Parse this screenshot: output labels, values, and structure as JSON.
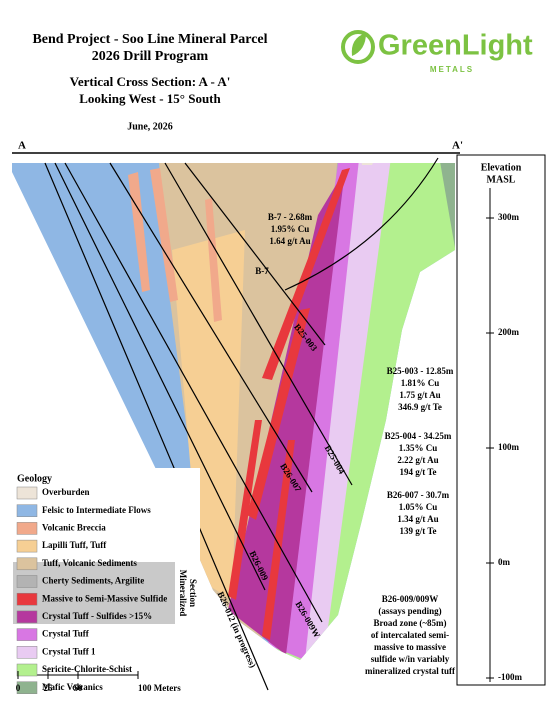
{
  "header": {
    "title_lines": [
      "Bend Project - Soo Line Mineral Parcel",
      "2026 Drill Program"
    ],
    "section_lines": [
      "Vertical Cross Section: A - A'",
      "Looking West - 15° South"
    ],
    "date": "June, 2026"
  },
  "logo": {
    "name": "GreenLight",
    "tagline": "METALS"
  },
  "section": {
    "start": "A",
    "end": "A'"
  },
  "elevation_axis": {
    "title": [
      "Elevation",
      "MASL"
    ],
    "ticks": [
      {
        "value": 300,
        "label": "300m"
      },
      {
        "value": 200,
        "label": "200m"
      },
      {
        "value": 100,
        "label": "100m"
      },
      {
        "value": 0,
        "label": "0m"
      },
      {
        "value": -100,
        "label": "-100m"
      }
    ]
  },
  "drill_holes": [
    {
      "label": "B-7"
    },
    {
      "label": "B25-003"
    },
    {
      "label": "B25-004"
    },
    {
      "label": "B26-007"
    },
    {
      "label": "B26-009"
    },
    {
      "label": "B26-009W"
    },
    {
      "label": "B26-012 (in progress)"
    }
  ],
  "intercepts": [
    {
      "lines": [
        "B-7 - 2.68m",
        "1.95% Cu",
        "1.64 g/t Au"
      ]
    },
    {
      "lines": [
        "B25-003 - 12.85m",
        "1.81% Cu",
        "1.75 g/t Au",
        "346.9 g/t Te"
      ]
    },
    {
      "lines": [
        "B25-004 - 34.25m",
        "1.35% Cu",
        "2.22 g/t Au",
        "194 g/t Te"
      ]
    },
    {
      "lines": [
        "B26-007 - 30.7m",
        "1.05% Cu",
        "1.34 g/t Au",
        "139 g/t Te"
      ]
    },
    {
      "lines": [
        "B26-009/009W",
        "(assays pending)",
        "Broad zone (~85m)",
        "of intercalated semi-",
        "massive to massive",
        "sulfide w/in variably",
        "mineralized crystal tuff"
      ]
    }
  ],
  "legend": {
    "title": "Geology",
    "group_label": [
      "Mineralized",
      "Section"
    ],
    "items": [
      {
        "label": "Overburden",
        "color": "#ede4d8"
      },
      {
        "label": "Felsic to Intermediate Flows",
        "color": "#8fb7e4"
      },
      {
        "label": "Volcanic Breccia",
        "color": "#f1a98b"
      },
      {
        "label": "Lapilli Tuff, Tuff",
        "color": "#f6cf94"
      },
      {
        "label": "Tuff, Volcanic Sediments",
        "color": "#dbc39e"
      },
      {
        "label": "Cherty Sediments, Argilite",
        "color": "#b3b3b3"
      },
      {
        "label": "Massive to Semi-Massive Sulfide",
        "color": "#e8383d"
      },
      {
        "label": "Crystal Tuff - Sulfides >15%",
        "color": "#b5389e"
      },
      {
        "label": "Crystal Tuff",
        "color": "#d877e3"
      },
      {
        "label": "Crystal Tuff 1",
        "color": "#e9cbf2"
      },
      {
        "label": "Sericite-Chlorite-Schist",
        "color": "#b3f08e"
      },
      {
        "label": "Mafic Volcanics",
        "color": "#8fb38f"
      }
    ]
  },
  "scale_bar": {
    "ticks": [
      {
        "value": 0,
        "label": "0"
      },
      {
        "value": 25,
        "label": "25"
      },
      {
        "value": 50,
        "label": "50"
      },
      {
        "value": 100,
        "label": "100 Meters"
      }
    ]
  }
}
